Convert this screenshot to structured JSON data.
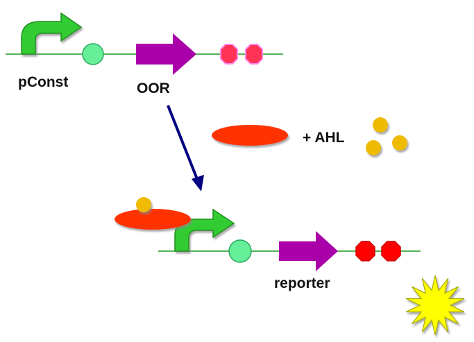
{
  "labels": {
    "promoter_top": "pConst",
    "gene_top": "OOR",
    "inducer": "+ AHL",
    "gene_bottom": "reporter"
  },
  "colors": {
    "dna_line": "#1a9a1a",
    "promoter_arrow": "#33cc33",
    "promoter_arrow_edge": "#1e8f1e",
    "operator_circle": "#66ee99",
    "operator_edge": "#2aa860",
    "gene_arrow": "#aa00aa",
    "terminator_top": "#ff3355",
    "terminator_top_edge": "#ff88ee",
    "terminator_bottom": "#ff0000",
    "terminator_bottom_edge": "#cc0000",
    "protein": "#ff3300",
    "ahl": "#eebb00",
    "flow_arrow": "#000080",
    "burst": "#ffff00",
    "burst_edge": "#aaaa00",
    "shadow": "#999999"
  },
  "icons": {
    "promoter": "bent-arrow-promoter-icon",
    "operator": "circle-operator-icon",
    "gene": "block-arrow-gene-icon",
    "terminator": "octagon-terminator-icon",
    "protein": "ellipse-protein-icon",
    "ahl": "circle-molecule-icon",
    "signal": "starburst-signal-icon"
  }
}
